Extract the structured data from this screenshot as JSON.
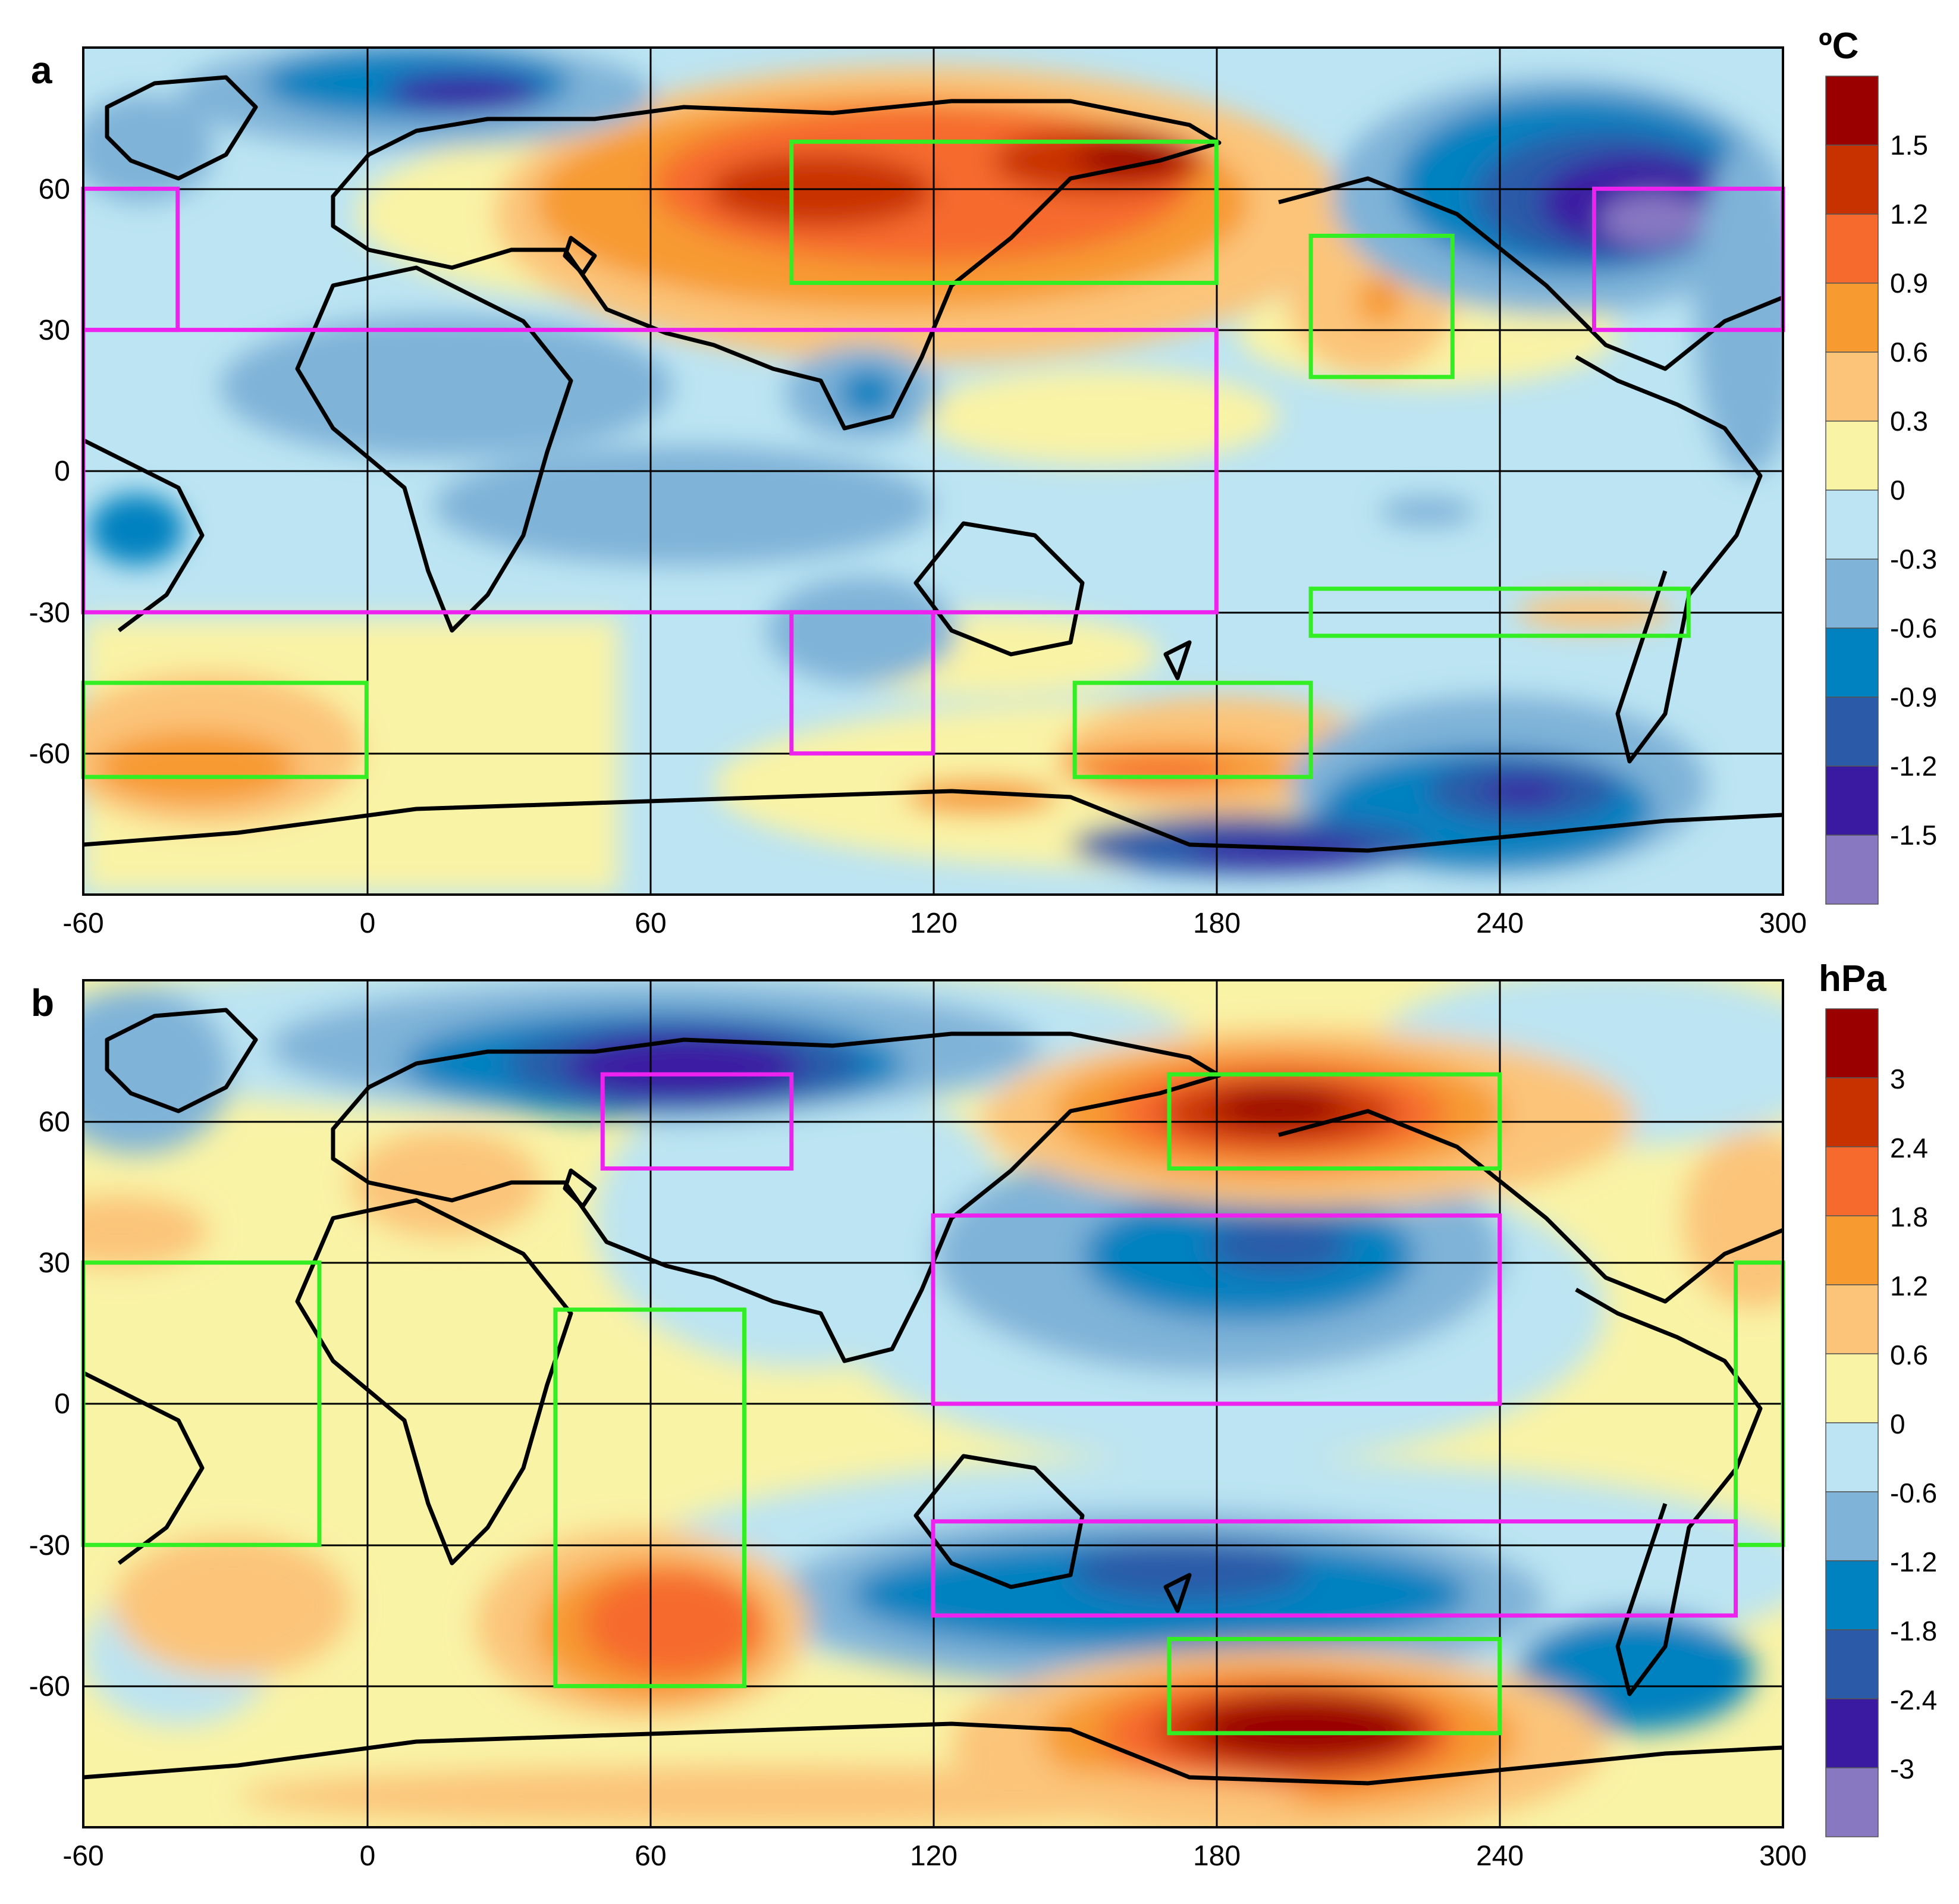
{
  "panels": [
    {
      "id": "a",
      "letter": "a",
      "unit": "ºC",
      "colorbar_labels": [
        "1.5",
        "1.2",
        "0.9",
        "0.6",
        "0.3",
        "0",
        "-0.3",
        "-0.6",
        "-0.9",
        "-1.2",
        "-1.5"
      ],
      "colorbar_colors": [
        "#9a0000",
        "#c83200",
        "#f66a2e",
        "#f79a30",
        "#fbc479",
        "#f9f3a6",
        "#bce4f2",
        "#7fb3d8",
        "#0081c0",
        "#2a5aa8",
        "#3b1aa2",
        "#8878c2"
      ],
      "boxes": [
        {
          "color": "green",
          "lon": [
            90,
            180
          ],
          "lat": [
            40,
            70
          ]
        },
        {
          "color": "green",
          "lon": [
            200,
            230
          ],
          "lat": [
            20,
            50
          ]
        },
        {
          "color": "green",
          "lon": [
            200,
            280
          ],
          "lat": [
            -35,
            -25
          ]
        },
        {
          "color": "green",
          "lon": [
            -60,
            0
          ],
          "lat": [
            -65,
            -45
          ]
        },
        {
          "color": "green",
          "lon": [
            150,
            200
          ],
          "lat": [
            -65,
            -45
          ]
        },
        {
          "color": "magenta",
          "lon": [
            -60,
            -40
          ],
          "lat": [
            30,
            60
          ]
        },
        {
          "color": "magenta",
          "lon": [
            260,
            300
          ],
          "lat": [
            30,
            60
          ]
        },
        {
          "color": "magenta",
          "lon": [
            -60,
            180
          ],
          "lat": [
            -30,
            30
          ]
        },
        {
          "color": "magenta",
          "lon": [
            90,
            120
          ],
          "lat": [
            -60,
            -30
          ]
        }
      ]
    },
    {
      "id": "b",
      "letter": "b",
      "unit": "hPa",
      "colorbar_labels": [
        "3",
        "2.4",
        "1.8",
        "1.2",
        "0.6",
        "0",
        "-0.6",
        "-1.2",
        "-1.8",
        "-2.4",
        "-3"
      ],
      "colorbar_colors": [
        "#9a0000",
        "#c83200",
        "#f66a2e",
        "#f79a30",
        "#fbc479",
        "#f9f3a6",
        "#bce4f2",
        "#7fb3d8",
        "#0081c0",
        "#2a5aa8",
        "#3b1aa2",
        "#8878c2"
      ],
      "boxes": [
        {
          "color": "green",
          "lon": [
            170,
            240
          ],
          "lat": [
            50,
            70
          ]
        },
        {
          "color": "green",
          "lon": [
            -60,
            -10
          ],
          "lat": [
            -30,
            30
          ]
        },
        {
          "color": "green",
          "lon": [
            40,
            80
          ],
          "lat": [
            -60,
            20
          ]
        },
        {
          "color": "green",
          "lon": [
            290,
            300
          ],
          "lat": [
            -30,
            30
          ]
        },
        {
          "color": "green",
          "lon": [
            170,
            240
          ],
          "lat": [
            -70,
            -50
          ]
        },
        {
          "color": "magenta",
          "lon": [
            50,
            90
          ],
          "lat": [
            50,
            70
          ]
        },
        {
          "color": "magenta",
          "lon": [
            120,
            240
          ],
          "lat": [
            0,
            40
          ]
        },
        {
          "color": "magenta",
          "lon": [
            120,
            290
          ],
          "lat": [
            -45,
            -25
          ]
        }
      ]
    }
  ],
  "axes": {
    "x_ticks": [
      "-60",
      "0",
      "60",
      "120",
      "180",
      "240",
      "300"
    ],
    "y_ticks": [
      "60",
      "30",
      "0",
      "-30",
      "-60"
    ]
  },
  "colors": {
    "green_box": "#33ee22",
    "magenta_box": "#ee22ee",
    "coast": "#000000",
    "grid": "#000000"
  }
}
